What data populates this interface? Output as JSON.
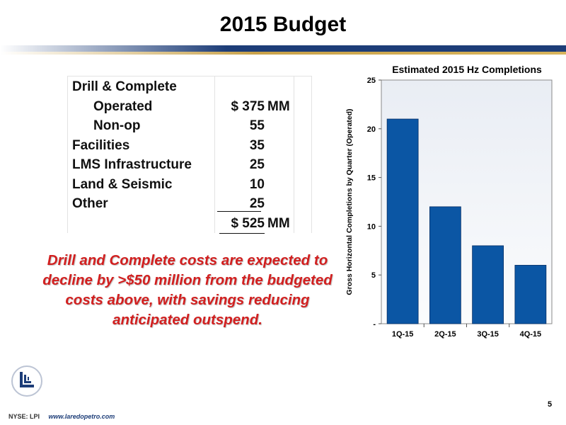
{
  "title": "2015 Budget",
  "budget": {
    "rows": [
      {
        "label": "Drill & Complete",
        "indent": false,
        "amount": "",
        "unit": ""
      },
      {
        "label": "Operated",
        "indent": true,
        "amount": "$ 375",
        "unit": "MM"
      },
      {
        "label": "Non-op",
        "indent": true,
        "amount": "55",
        "unit": ""
      },
      {
        "label": "Facilities",
        "indent": false,
        "amount": "35",
        "unit": ""
      },
      {
        "label": "LMS Infrastructure",
        "indent": false,
        "amount": "25",
        "unit": ""
      },
      {
        "label": "Land & Seismic",
        "indent": false,
        "amount": "10",
        "unit": ""
      },
      {
        "label": "Other",
        "indent": false,
        "amount": "25",
        "unit": ""
      },
      {
        "label": "",
        "indent": false,
        "amount": "$ 525",
        "unit": "MM"
      }
    ]
  },
  "callout": "Drill and Complete costs are expected to decline by >$50 million from the budgeted costs above, with savings reducing anticipated outspend.",
  "chart_data": {
    "type": "bar",
    "title": "Estimated 2015 Hz Completions",
    "ylabel": "Gross Horizontal Completions by Quarter (Operated)",
    "xlabel": "",
    "categories": [
      "1Q-15",
      "2Q-15",
      "3Q-15",
      "4Q-15"
    ],
    "values": [
      21,
      12,
      8,
      6
    ],
    "ylim": [
      0,
      25
    ],
    "yticks": [
      0,
      5,
      10,
      15,
      20,
      25
    ],
    "ytick_labels": [
      "-",
      "5",
      "10",
      "15",
      "20",
      "25"
    ],
    "bar_color": "#0b56a4",
    "grid": false
  },
  "footer": {
    "ticker": "NYSE: LPI",
    "website": "www.laredopetro.com",
    "page_number": "5"
  },
  "colors": {
    "navy": "#1d3d78",
    "gold": "#c9a24a",
    "callout_red": "#d21f1f"
  }
}
